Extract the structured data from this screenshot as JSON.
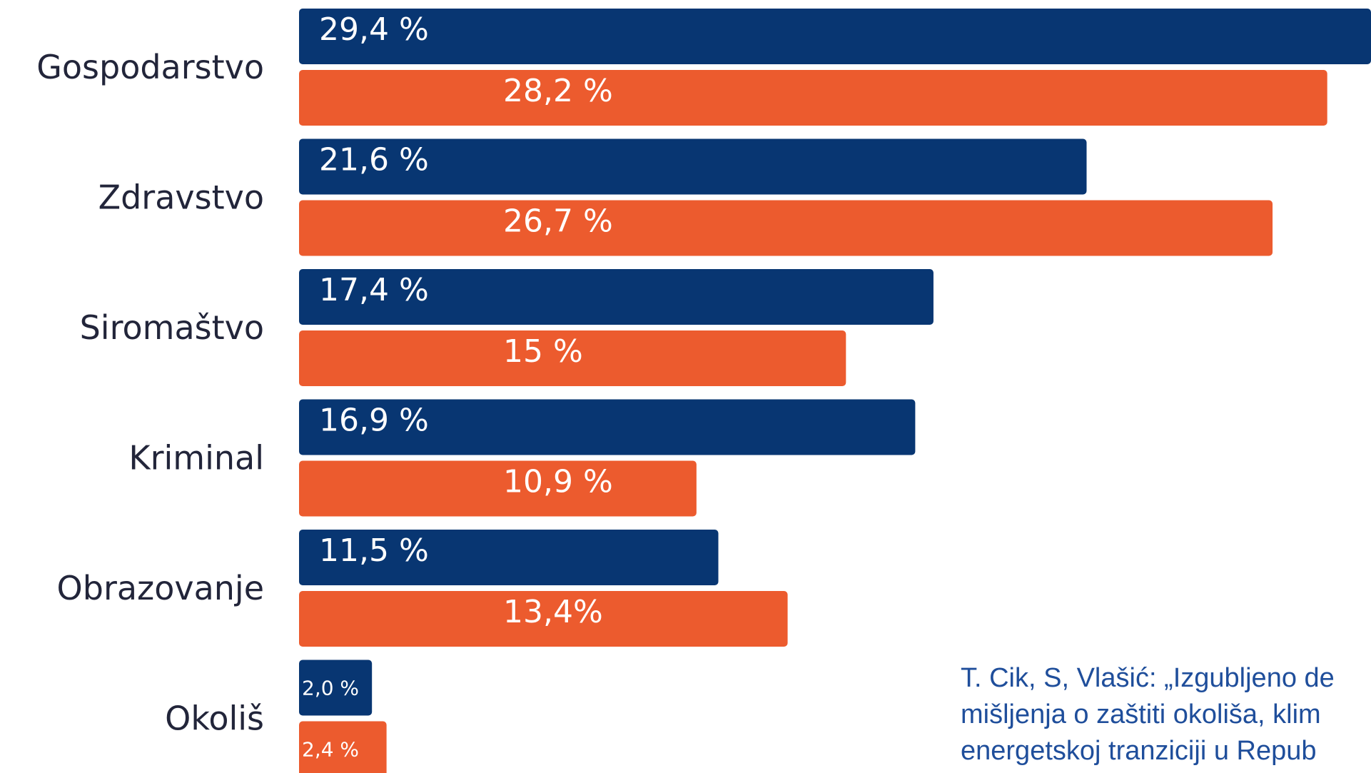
{
  "chart_data": {
    "type": "bar",
    "orientation": "horizontal",
    "categories": [
      "Gospodarstvo",
      "Zdravstvo",
      "Siromaštvo",
      "Kriminal",
      "Obrazovanje",
      "Okoliš"
    ],
    "series": [
      {
        "color": "#083672",
        "values": [
          29.4,
          21.6,
          17.4,
          16.9,
          11.5,
          2.0
        ],
        "labels": [
          "29,4 %",
          "21,6 %",
          "17,4 %",
          "16,9 %",
          "11,5 %",
          "2,0 %"
        ]
      },
      {
        "color": "#ec5b2e",
        "values": [
          28.2,
          26.7,
          15.0,
          10.9,
          13.4,
          2.4
        ],
        "labels": [
          "28,2 %",
          "26,7 %",
          "15 %",
          "10,9 %",
          "13,4%",
          "2,4 %"
        ]
      }
    ],
    "xlim": [
      0,
      29.4
    ],
    "grid": false,
    "legend": "none"
  },
  "source_note": {
    "lines": [
      "T. Cik, S, Vlašić: „Izgubljeno de",
      "mišljenja o zaštiti okoliša, klim",
      "energetskoj tranziciji u Repub"
    ]
  }
}
